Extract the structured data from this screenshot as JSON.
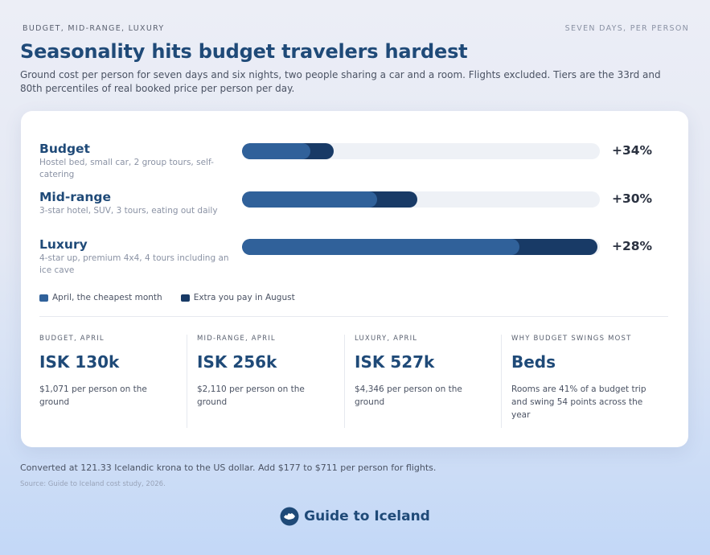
{
  "header": {
    "kicker_left": "BUDGET, MID-RANGE, LUXURY",
    "kicker_right": "SEVEN DAYS, PER PERSON",
    "title": "Seasonality hits budget travelers hardest",
    "subtitle": "Ground cost per person for seven days and six nights, two people sharing a car and a room. Flights excluded. Tiers are the 33rd and 80th percentiles of real booked price per person per day."
  },
  "colors": {
    "april": "#30619a",
    "august_extra": "#183a66",
    "track": "#eef1f6"
  },
  "chart_data": {
    "type": "bar",
    "orientation": "horizontal",
    "stacked": true,
    "categories": [
      "Budget",
      "Mid-range",
      "Luxury"
    ],
    "descriptions": [
      "Hostel bed, small car, 2 group tours, self-catering",
      "3-star hotel, SUV, 3 tours, eating out daily",
      "4-star up, premium 4x4, 4 tours including an ice cave"
    ],
    "series": [
      {
        "name": "April, the cheapest month",
        "values": [
          130,
          256,
          527
        ]
      },
      {
        "name": "Extra you pay in August",
        "values": [
          44,
          77,
          148
        ]
      }
    ],
    "xlim": [
      0,
      680
    ],
    "labels": [
      "+34%",
      "+30%",
      "+28%"
    ],
    "legend_position": "bottom-left"
  },
  "stats": [
    {
      "label": "BUDGET, APRIL",
      "value": "ISK 130k",
      "note": "$1,071 per person on the ground"
    },
    {
      "label": "MID-RANGE, APRIL",
      "value": "ISK 256k",
      "note": "$2,110 per person on the ground"
    },
    {
      "label": "LUXURY, APRIL",
      "value": "ISK 527k",
      "note": "$4,346 per person on the ground"
    },
    {
      "label": "WHY BUDGET SWINGS MOST",
      "value": "Beds",
      "note": "Rooms are 41% of a budget trip and swing 54 points across the year"
    }
  ],
  "footer": {
    "note": "Converted at 121.33 Icelandic krona to the US dollar. Add $177 to $711 per person for flights.",
    "source": "Source: Guide to Iceland cost study, 2026.",
    "brand": "Guide to Iceland"
  }
}
